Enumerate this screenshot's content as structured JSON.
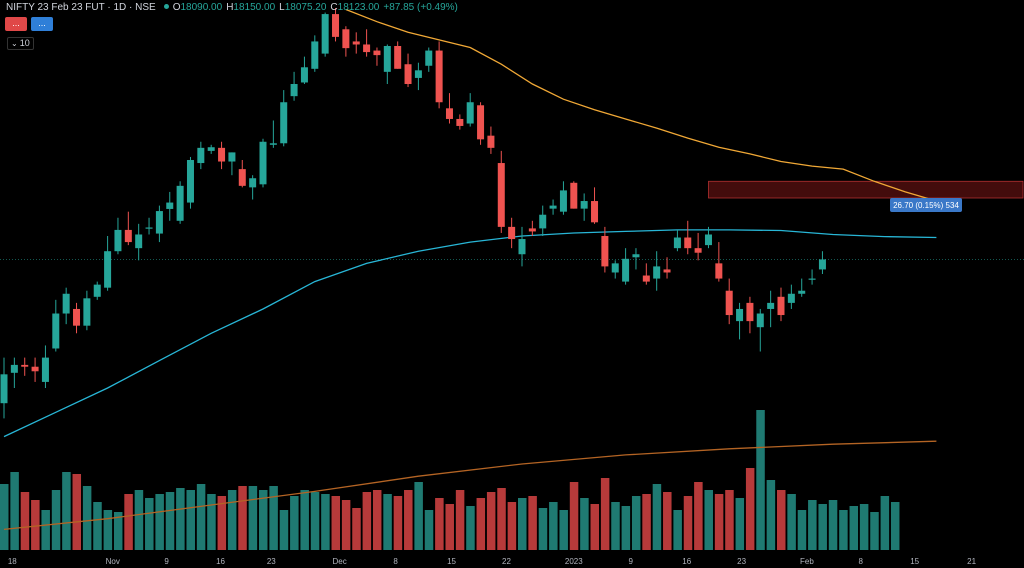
{
  "legend": {
    "symbol": "NIFTY 23 Feb 23 FUT · 1D · NSE",
    "o_label": "O",
    "o_value": "18090.00",
    "h_label": "H",
    "h_value": "18150.00",
    "l_label": "L",
    "l_value": "18075.20",
    "c_label": "C",
    "c_value": "18123.00",
    "change": "+87.85 (+0.49%)"
  },
  "buttons": [
    {
      "label": "..."
    },
    {
      "label": "..."
    }
  ],
  "volume_ma_label": "10",
  "annotation": {
    "text": "26.70 (0.15%) 534"
  },
  "colors": {
    "up": "#26a69a",
    "down": "#ef5350",
    "ma_fast": "#f0a836",
    "ma_mid": "#28b6d6",
    "ma_slow": "#b46424",
    "zone": "#5a1010",
    "label": "#3a78c8"
  },
  "chart_data": {
    "type": "candlestick",
    "x_ticks": [
      "18",
      "Nov",
      "9",
      "16",
      "23",
      "Dec",
      "8",
      "15",
      "22",
      "2023",
      "9",
      "16",
      "23",
      "Feb",
      "8",
      "15",
      "21"
    ],
    "ylim": [
      17700,
      18950
    ],
    "candles": [
      [
        17650,
        17800,
        17600,
        17745,
        25
      ],
      [
        17750,
        17800,
        17700,
        17776,
        21
      ],
      [
        17776,
        17800,
        17740,
        17770,
        20
      ],
      [
        17770,
        17800,
        17720,
        17755,
        23
      ],
      [
        17720,
        17840,
        17700,
        17800,
        20
      ],
      [
        17830,
        17990,
        17820,
        17945,
        22
      ],
      [
        17945,
        18030,
        17910,
        18010,
        16
      ],
      [
        17960,
        17980,
        17880,
        17905,
        14
      ],
      [
        17905,
        18020,
        17890,
        17995,
        20
      ],
      [
        18000,
        18050,
        17990,
        18040,
        15
      ],
      [
        18030,
        18200,
        18020,
        18150,
        16
      ],
      [
        18150,
        18260,
        18140,
        18220,
        15
      ],
      [
        18220,
        18280,
        18170,
        18180,
        17
      ],
      [
        18160,
        18240,
        18120,
        18205,
        18
      ],
      [
        18225,
        18260,
        18205,
        18228,
        16
      ],
      [
        18208,
        18300,
        18180,
        18282,
        16
      ],
      [
        18289,
        18345,
        18250,
        18310,
        17
      ],
      [
        18250,
        18380,
        18240,
        18365,
        20
      ],
      [
        18310,
        18460,
        18290,
        18450,
        14
      ],
      [
        18440,
        18510,
        18420,
        18490,
        17
      ],
      [
        18480,
        18500,
        18470,
        18492,
        18
      ],
      [
        18490,
        18510,
        18420,
        18445,
        17
      ],
      [
        18445,
        18475,
        18400,
        18475,
        17
      ],
      [
        18420,
        18450,
        18360,
        18365,
        16
      ],
      [
        18360,
        18400,
        18320,
        18390,
        14
      ],
      [
        18370,
        18520,
        18360,
        18510,
        18
      ],
      [
        18500,
        18580,
        18490,
        18505,
        22
      ],
      [
        18505,
        18680,
        18495,
        18640,
        15
      ],
      [
        18660,
        18740,
        18645,
        18700,
        13
      ],
      [
        18705,
        18790,
        18700,
        18755,
        14
      ],
      [
        18750,
        18860,
        18740,
        18840,
        15
      ],
      [
        18800,
        18935,
        18790,
        18930,
        17
      ],
      [
        18930,
        18950,
        18840,
        18855,
        16
      ],
      [
        18880,
        18890,
        18790,
        18818,
        13
      ],
      [
        18840,
        18870,
        18800,
        18830,
        15
      ],
      [
        18830,
        18880,
        18790,
        18805,
        16
      ],
      [
        18810,
        18820,
        18760,
        18795,
        16
      ],
      [
        18740,
        18830,
        18700,
        18825,
        14
      ],
      [
        18825,
        18840,
        18750,
        18750,
        13
      ],
      [
        18765,
        18800,
        18690,
        18700,
        13
      ],
      [
        18720,
        18770,
        18680,
        18745,
        12
      ],
      [
        18760,
        18820,
        18740,
        18810,
        16
      ],
      [
        18810,
        18840,
        18620,
        18640,
        15
      ],
      [
        18620,
        18670,
        18570,
        18585,
        18
      ],
      [
        18585,
        18600,
        18550,
        18562,
        11
      ],
      [
        18570,
        18670,
        18560,
        18640,
        15
      ],
      [
        18630,
        18640,
        18500,
        18518,
        14
      ],
      [
        18530,
        18560,
        18470,
        18490,
        17
      ],
      [
        18440,
        18480,
        18210,
        18230,
        13
      ],
      [
        18230,
        18260,
        18160,
        18190,
        13
      ],
      [
        18140,
        18230,
        18100,
        18190,
        12
      ],
      [
        18225,
        18250,
        18200,
        18215,
        10
      ],
      [
        18225,
        18300,
        18200,
        18270,
        9
      ],
      [
        18290,
        18320,
        18270,
        18300,
        11
      ],
      [
        18280,
        18380,
        18270,
        18350,
        15
      ],
      [
        18375,
        18380,
        18290,
        18290,
        14
      ],
      [
        18290,
        18340,
        18250,
        18315,
        15
      ],
      [
        18315,
        18360,
        18240,
        18245,
        20
      ],
      [
        18200,
        18230,
        18080,
        18100,
        12
      ],
      [
        18080,
        18120,
        18060,
        18110,
        10
      ],
      [
        18050,
        18160,
        18040,
        18125,
        15
      ],
      [
        18130,
        18160,
        18090,
        18140,
        16
      ],
      [
        18070,
        18110,
        18040,
        18050,
        13
      ],
      [
        18060,
        18150,
        18020,
        18100,
        10
      ],
      [
        18090,
        18130,
        18060,
        18080,
        12
      ],
      [
        18160,
        18220,
        18150,
        18195,
        11
      ],
      [
        18195,
        18250,
        18140,
        18160,
        14
      ],
      [
        18160,
        18210,
        18120,
        18145,
        11
      ],
      [
        18170,
        18230,
        18160,
        18205,
        14
      ],
      [
        18110,
        18180,
        18050,
        18060,
        19
      ],
      [
        18020,
        18060,
        17910,
        17940,
        17
      ],
      [
        17920,
        17980,
        17860,
        17960,
        22
      ],
      [
        17980,
        18000,
        17880,
        17920,
        15
      ],
      [
        17900,
        17960,
        17820,
        17945,
        24
      ],
      [
        17960,
        18020,
        17900,
        17980,
        16
      ],
      [
        18000,
        18030,
        17920,
        17940,
        18
      ],
      [
        17980,
        18040,
        17960,
        18010,
        19
      ],
      [
        18010,
        18060,
        18000,
        18020,
        18
      ],
      [
        18060,
        18090,
        18040,
        18060,
        19
      ],
      [
        18090,
        18150,
        18075,
        18123,
        14
      ]
    ],
    "volume_overlay_bars": [
      66,
      78,
      58,
      50,
      40,
      60,
      78,
      76,
      64,
      48,
      40,
      38,
      56,
      60,
      52,
      56,
      58,
      62,
      60,
      66,
      56,
      54,
      60,
      64,
      64,
      60,
      64,
      40,
      54,
      60,
      58,
      56,
      54,
      50,
      42,
      58,
      60,
      56,
      54,
      60,
      68,
      40,
      52,
      46,
      60,
      44,
      52,
      58,
      62,
      48,
      52,
      54,
      42,
      48,
      40,
      68,
      52,
      46,
      72,
      48,
      44,
      54,
      56,
      66,
      58,
      40,
      54,
      68,
      60,
      56,
      60,
      52,
      82,
      140,
      70,
      60,
      56,
      40,
      50,
      46,
      50,
      40,
      44,
      46,
      38,
      54,
      48
    ],
    "ma_series": [
      {
        "name": "",
        "color": "#f0a836",
        "values": [
          [
            33,
            18945
          ],
          [
            36,
            18905
          ],
          [
            39,
            18870
          ],
          [
            42,
            18845
          ],
          [
            45,
            18820
          ],
          [
            48,
            18765
          ],
          [
            51,
            18700
          ],
          [
            54,
            18650
          ],
          [
            57,
            18615
          ],
          [
            60,
            18585
          ],
          [
            63,
            18555
          ],
          [
            66,
            18522
          ],
          [
            69,
            18492
          ],
          [
            72,
            18470
          ],
          [
            75,
            18445
          ],
          [
            78,
            18430
          ],
          [
            81,
            18420
          ],
          [
            84,
            18380
          ],
          [
            87,
            18345
          ],
          [
            90,
            18315
          ]
        ]
      },
      {
        "name": "",
        "color": "#28b6d6",
        "values": [
          [
            0,
            17540
          ],
          [
            5,
            17620
          ],
          [
            10,
            17700
          ],
          [
            15,
            17790
          ],
          [
            20,
            17880
          ],
          [
            25,
            17960
          ],
          [
            30,
            18050
          ],
          [
            35,
            18110
          ],
          [
            40,
            18150
          ],
          [
            45,
            18180
          ],
          [
            50,
            18200
          ],
          [
            55,
            18210
          ],
          [
            60,
            18215
          ],
          [
            65,
            18220
          ],
          [
            70,
            18220
          ],
          [
            75,
            18218
          ],
          [
            80,
            18205
          ],
          [
            85,
            18198
          ],
          [
            90,
            18195
          ]
        ]
      },
      {
        "name": "",
        "color": "#b46424",
        "values": [
          [
            0,
            17235
          ],
          [
            10,
            17270
          ],
          [
            20,
            17315
          ],
          [
            30,
            17360
          ],
          [
            40,
            17410
          ],
          [
            50,
            17450
          ],
          [
            60,
            17480
          ],
          [
            70,
            17500
          ],
          [
            80,
            17515
          ],
          [
            90,
            17525
          ]
        ]
      }
    ],
    "last_price_line": 18123,
    "zone": {
      "start_index": 68,
      "end_index": 95,
      "top": 18380,
      "bottom": 18325
    }
  }
}
